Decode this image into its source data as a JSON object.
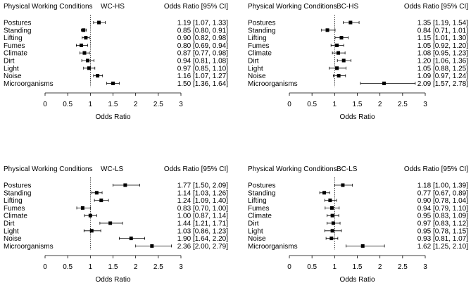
{
  "chart_data": [
    {
      "type": "forest",
      "title": "WC-HS",
      "row_header": "Physical Working Conditions",
      "estimate_header": "Odds Ratio [95% CI]",
      "xlabel": "Odds Ratio",
      "xlim": [
        0,
        3
      ],
      "xticks": [
        "0",
        "0.5",
        "1",
        "1.5",
        "2",
        "2.5",
        "3"
      ],
      "reference_line": 1,
      "rows": [
        {
          "label": "Postures",
          "or": 1.19,
          "lo": 1.07,
          "hi": 1.33,
          "text": "1.19 [1.07, 1.33]"
        },
        {
          "label": "Standing",
          "or": 0.85,
          "lo": 0.8,
          "hi": 0.91,
          "text": "0.85 [0.80, 0.91]"
        },
        {
          "label": "Lifting",
          "or": 0.9,
          "lo": 0.82,
          "hi": 0.98,
          "text": "0.90 [0.82, 0.98]"
        },
        {
          "label": "Fumes",
          "or": 0.8,
          "lo": 0.69,
          "hi": 0.94,
          "text": "0.80 [0.69, 0.94]"
        },
        {
          "label": "Climate",
          "or": 0.87,
          "lo": 0.77,
          "hi": 0.98,
          "text": "0.87 [0.77, 0.98]"
        },
        {
          "label": "Dirt",
          "or": 0.94,
          "lo": 0.81,
          "hi": 1.08,
          "text": "0.94 [0.81, 1.08]"
        },
        {
          "label": "Light",
          "or": 0.97,
          "lo": 0.85,
          "hi": 1.1,
          "text": "0.97 [0.85, 1.10]"
        },
        {
          "label": "Noise",
          "or": 1.16,
          "lo": 1.07,
          "hi": 1.27,
          "text": "1.16 [1.07, 1.27]"
        },
        {
          "label": "Microorganisms",
          "or": 1.5,
          "lo": 1.36,
          "hi": 1.64,
          "text": "1.50 [1.36, 1.64]"
        }
      ]
    },
    {
      "type": "forest",
      "title": "BC-HS",
      "row_header": "Physical Working Conditions",
      "estimate_header": "Odds Ratio [95% CI]",
      "xlabel": "Odds Ratio",
      "xlim": [
        0,
        3
      ],
      "xticks": [
        "0",
        "0.5",
        "1",
        "1.5",
        "2",
        "2.5",
        "3"
      ],
      "reference_line": 1,
      "rows": [
        {
          "label": "Postures",
          "or": 1.35,
          "lo": 1.19,
          "hi": 1.54,
          "text": "1.35 [1.19, 1.54]"
        },
        {
          "label": "Standing",
          "or": 0.84,
          "lo": 0.71,
          "hi": 1.01,
          "text": "0.84 [0.71, 1.01]"
        },
        {
          "label": "Lifting",
          "or": 1.15,
          "lo": 1.01,
          "hi": 1.3,
          "text": "1.15 [1.01, 1.30]"
        },
        {
          "label": "Fumes",
          "or": 1.05,
          "lo": 0.92,
          "hi": 1.2,
          "text": "1.05 [0.92, 1.20]"
        },
        {
          "label": "Climate",
          "or": 1.08,
          "lo": 0.95,
          "hi": 1.23,
          "text": "1.08 [0.95, 1.23]"
        },
        {
          "label": "Dirt",
          "or": 1.2,
          "lo": 1.06,
          "hi": 1.36,
          "text": "1.20 [1.06, 1.36]"
        },
        {
          "label": "Light",
          "or": 1.05,
          "lo": 0.88,
          "hi": 1.25,
          "text": "1.05 [0.88, 1.25]"
        },
        {
          "label": "Noise",
          "or": 1.09,
          "lo": 0.97,
          "hi": 1.24,
          "text": "1.09 [0.97, 1.24]"
        },
        {
          "label": "Microorganisms",
          "or": 2.09,
          "lo": 1.57,
          "hi": 2.78,
          "text": "2.09 [1.57, 2.78]"
        }
      ]
    },
    {
      "type": "forest",
      "title": "WC-LS",
      "row_header": "Physical Working Conditions",
      "estimate_header": "Odds Ratio [95% CI]",
      "xlabel": "Odds Ratio",
      "xlim": [
        0,
        3
      ],
      "xticks": [
        "0",
        "0.5",
        "1",
        "1.5",
        "2",
        "2.5",
        "3"
      ],
      "reference_line": 1,
      "rows": [
        {
          "label": "Postures",
          "or": 1.77,
          "lo": 1.5,
          "hi": 2.09,
          "text": "1.77 [1.50, 2.09]"
        },
        {
          "label": "Standing",
          "or": 1.14,
          "lo": 1.03,
          "hi": 1.26,
          "text": "1.14 [1.03, 1.26]"
        },
        {
          "label": "Lifting",
          "or": 1.24,
          "lo": 1.09,
          "hi": 1.4,
          "text": "1.24 [1.09, 1.40]"
        },
        {
          "label": "Fumes",
          "or": 0.83,
          "lo": 0.7,
          "hi": 1.0,
          "text": "0.83 [0.70, 1.00]"
        },
        {
          "label": "Climate",
          "or": 1.0,
          "lo": 0.87,
          "hi": 1.14,
          "text": "1.00 [0.87, 1.14]"
        },
        {
          "label": "Dirt",
          "or": 1.44,
          "lo": 1.21,
          "hi": 1.71,
          "text": "1.44 [1.21, 1.71]"
        },
        {
          "label": "Light",
          "or": 1.03,
          "lo": 0.86,
          "hi": 1.23,
          "text": "1.03 [0.86, 1.23]"
        },
        {
          "label": "Noise",
          "or": 1.9,
          "lo": 1.64,
          "hi": 2.2,
          "text": "1.90 [1.64, 2.20]"
        },
        {
          "label": "Microorganisms",
          "or": 2.36,
          "lo": 2.0,
          "hi": 2.79,
          "text": "2.36 [2.00, 2.79]"
        }
      ]
    },
    {
      "type": "forest",
      "title": "BC-LS",
      "row_header": "Physical Working Conditions",
      "estimate_header": "Odds Ratio [95% CI]",
      "xlabel": "Odds Ratio",
      "xlim": [
        0,
        3
      ],
      "xticks": [
        "0",
        "0.5",
        "1",
        "1.5",
        "2",
        "2.5",
        "3"
      ],
      "reference_line": 1,
      "rows": [
        {
          "label": "Postures",
          "or": 1.18,
          "lo": 1.0,
          "hi": 1.39,
          "text": "1.18 [1.00, 1.39]"
        },
        {
          "label": "Standing",
          "or": 0.77,
          "lo": 0.67,
          "hi": 0.89,
          "text": "0.77 [0.67, 0.89]"
        },
        {
          "label": "Lifting",
          "or": 0.9,
          "lo": 0.78,
          "hi": 1.04,
          "text": "0.90 [0.78, 1.04]"
        },
        {
          "label": "Fumes",
          "or": 0.94,
          "lo": 0.79,
          "hi": 1.1,
          "text": "0.94 [0.79, 1.10]"
        },
        {
          "label": "Climate",
          "or": 0.95,
          "lo": 0.83,
          "hi": 1.09,
          "text": "0.95 [0.83, 1.09]"
        },
        {
          "label": "Dirt",
          "or": 0.97,
          "lo": 0.83,
          "hi": 1.12,
          "text": "0.97 [0.83, 1.12]"
        },
        {
          "label": "Light",
          "or": 0.95,
          "lo": 0.78,
          "hi": 1.15,
          "text": "0.95 [0.78, 1.15]"
        },
        {
          "label": "Noise",
          "or": 0.93,
          "lo": 0.81,
          "hi": 1.07,
          "text": "0.93 [0.81, 1.07]"
        },
        {
          "label": "Microorganisms",
          "or": 1.62,
          "lo": 1.25,
          "hi": 2.1,
          "text": "1.62 [1.25, 2.10]"
        }
      ]
    }
  ]
}
